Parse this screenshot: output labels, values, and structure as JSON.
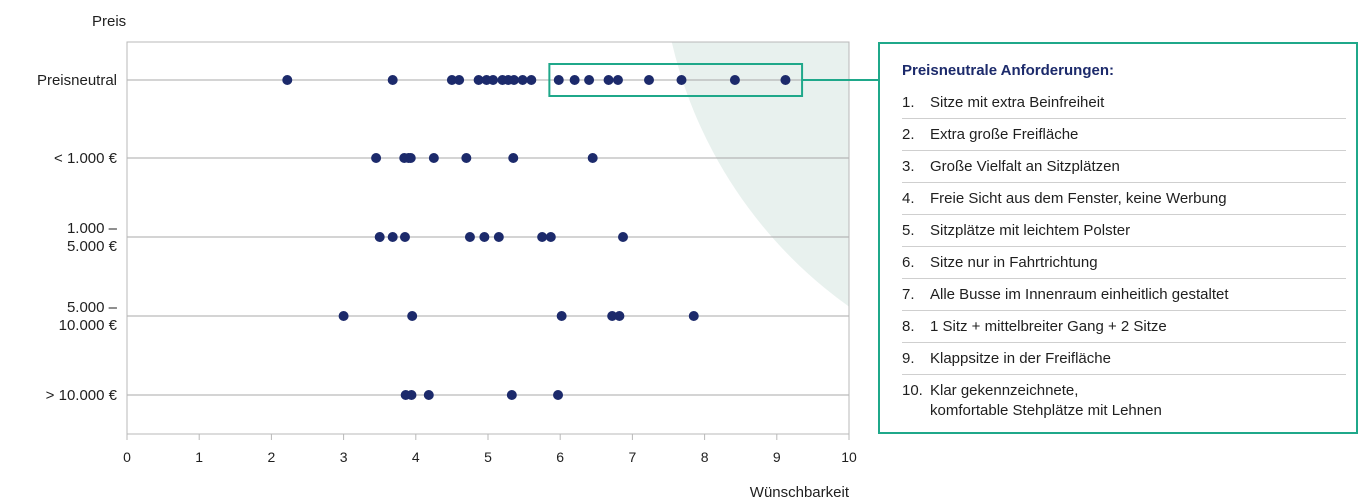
{
  "chart_data": {
    "type": "scatter",
    "ylabel": "Preis",
    "xlabel": "Wünschbarkeit",
    "xlim": [
      0,
      10
    ],
    "x_ticks": [
      "0",
      "1",
      "2",
      "3",
      "4",
      "5",
      "6",
      "7",
      "8",
      "9",
      "10"
    ],
    "categories": [
      "Preisneutral",
      "< 1.000 €",
      "1.000 –\n5.000 €",
      "5.000 –\n10.000 €",
      "> 10.000 €"
    ],
    "points": [
      {
        "category": "Preisneutral",
        "x": [
          2.22,
          3.68,
          4.5,
          4.6,
          4.87,
          4.98,
          5.07,
          5.2,
          5.28,
          5.36,
          5.48,
          5.6,
          5.98,
          6.2,
          6.4,
          6.67,
          6.8,
          7.23,
          7.68,
          8.42,
          9.12
        ]
      },
      {
        "category": "< 1.000 €",
        "x": [
          3.45,
          3.84,
          3.9,
          3.93,
          4.25,
          4.7,
          5.35,
          6.45
        ]
      },
      {
        "category": "1.000 –\n5.000 €",
        "x": [
          3.5,
          3.68,
          3.85,
          4.75,
          4.95,
          5.15,
          5.75,
          5.87,
          6.87
        ]
      },
      {
        "category": "5.000 –\n10.000 €",
        "x": [
          3.0,
          3.95,
          6.02,
          6.72,
          6.82,
          7.85
        ]
      },
      {
        "category": "> 10.000 €",
        "x": [
          3.86,
          3.94,
          4.18,
          5.33,
          5.97
        ]
      }
    ],
    "highlight_box": {
      "category": "Preisneutral",
      "x_from": 5.85,
      "x_to": 9.35
    },
    "marker_color": "#1c2a6b",
    "accent_color": "#1fa88a",
    "zone_color": "#e8f1ee"
  },
  "legend": {
    "title": "Preisneutrale Anforderungen:",
    "items": [
      {
        "num": "1.",
        "text": "Sitze mit extra Beinfreiheit"
      },
      {
        "num": "2.",
        "text": "Extra große Freifläche"
      },
      {
        "num": "3.",
        "text": "Große Vielfalt an Sitzplätzen"
      },
      {
        "num": "4.",
        "text": "Freie Sicht aus dem Fenster, keine Werbung"
      },
      {
        "num": "5.",
        "text": "Sitzplätze mit leichtem Polster"
      },
      {
        "num": "6.",
        "text": "Sitze nur in Fahrtrichtung"
      },
      {
        "num": "7.",
        "text": "Alle Busse im Innenraum einheitlich gestaltet"
      },
      {
        "num": "8.",
        "text": "1 Sitz + mittelbreiter Gang + 2 Sitze"
      },
      {
        "num": "9.",
        "text": "Klappsitze in der Freifläche"
      },
      {
        "num": "10.",
        "text": "Klar gekennzeichnete,\nkomfortable Stehplätze mit Lehnen"
      }
    ]
  }
}
